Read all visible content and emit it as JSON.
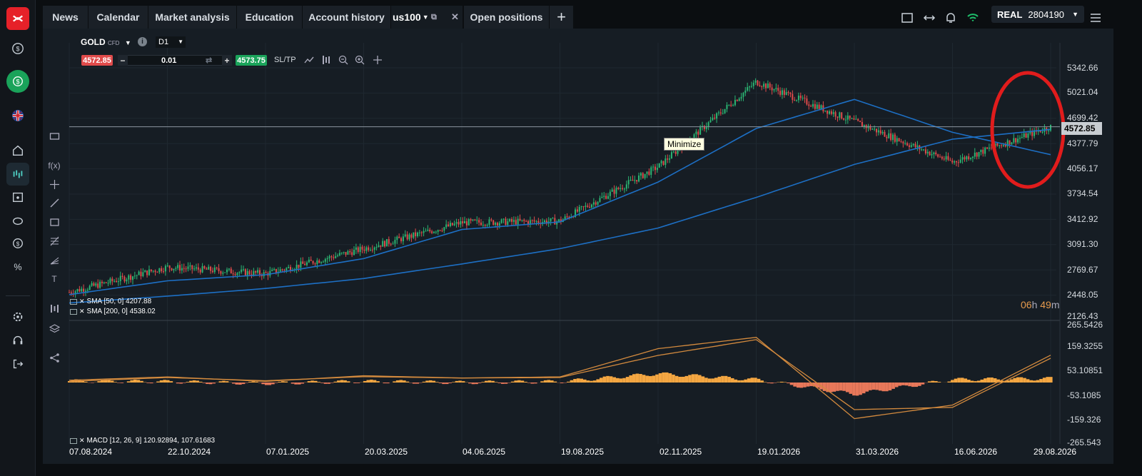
{
  "brand": {
    "logo_color": "#e62129"
  },
  "tabs": [
    {
      "label": "News"
    },
    {
      "label": "Calendar"
    },
    {
      "label": "Market analysis"
    },
    {
      "label": "Education"
    },
    {
      "label": "Account history"
    },
    {
      "label": "us100"
    },
    {
      "label": "Open positions"
    }
  ],
  "account": {
    "mode": "REAL",
    "number": "2804190"
  },
  "instrument": {
    "symbol": "GOLD",
    "type": "CFD",
    "timeframe": "D1"
  },
  "order": {
    "sell_price": "4572.85",
    "buy_price": "4573.75",
    "quantity": "0.01",
    "sltp_label": "SL/TP",
    "minus": "−",
    "plus": "+"
  },
  "tooltip": "Minimize",
  "price_axis": [
    "5342.66",
    "5021.04",
    "4699.42",
    "4572.85",
    "4377.79",
    "4056.17",
    "3734.54",
    "3412.92",
    "3091.30",
    "2769.67",
    "2448.05",
    "2126.43"
  ],
  "macd_axis": [
    "265.5426",
    "159.3255",
    "53.10851",
    "-53.1085",
    "-159.326",
    "-265.543"
  ],
  "current_price": "4572.85",
  "countdown": {
    "hours": "06",
    "h": "h",
    "minutes": "49",
    "m": "m"
  },
  "legends": {
    "sma50": "SMA [50, 0] 4207.88",
    "sma200": "SMA [200, 0] 4538.02",
    "macd": "MACD [12, 26, 9] 120.92894, 107.61683"
  },
  "dates": [
    "07.08.2024",
    "22.10.2024",
    "07.01.2025",
    "20.03.2025",
    "04.06.2025",
    "19.08.2025",
    "02.11.2025",
    "19.01.2026",
    "31.03.2026",
    "16.06.2026",
    "29.08.2026"
  ],
  "colors": {
    "sma": "#1d6fc4",
    "bull": "#2bb673",
    "bear": "#e04b4b",
    "macd_pos": "#f5a742",
    "macd_neg": "#e8785a",
    "macd_line": "#d38a3e",
    "highlight": "#e11c1c"
  },
  "chart_data": {
    "type": "line",
    "title": "GOLD CFD D1",
    "x": [
      "07.08.2024",
      "22.10.2024",
      "07.01.2025",
      "20.03.2025",
      "04.06.2025",
      "19.08.2025",
      "02.11.2025",
      "19.01.2026",
      "31.03.2026",
      "16.06.2026",
      "29.08.2026"
    ],
    "series": [
      {
        "name": "GOLD",
        "values": [
          2410,
          2740,
          2650,
          2980,
          3320,
          3340,
          4050,
          5160,
          4640,
          4110,
          4572.85
        ]
      },
      {
        "name": "SMA [50, 0]",
        "values": [
          2380,
          2560,
          2640,
          2850,
          3230,
          3330,
          3850,
          4550,
          4930,
          4500,
          4207.88
        ]
      },
      {
        "name": "SMA [200, 0]",
        "values": [
          2270,
          2360,
          2460,
          2590,
          2780,
          2980,
          3250,
          3650,
          4080,
          4410,
          4538.02
        ]
      }
    ],
    "ylim": [
      2126.43,
      5342.66
    ],
    "macd": {
      "name": "MACD [12, 26, 9]",
      "values": [
        10,
        25,
        5,
        30,
        20,
        25,
        150,
        200,
        -160,
        -100,
        120.93
      ],
      "signal": [
        5,
        22,
        8,
        26,
        20,
        22,
        120,
        190,
        -120,
        -110,
        107.62
      ]
    }
  }
}
